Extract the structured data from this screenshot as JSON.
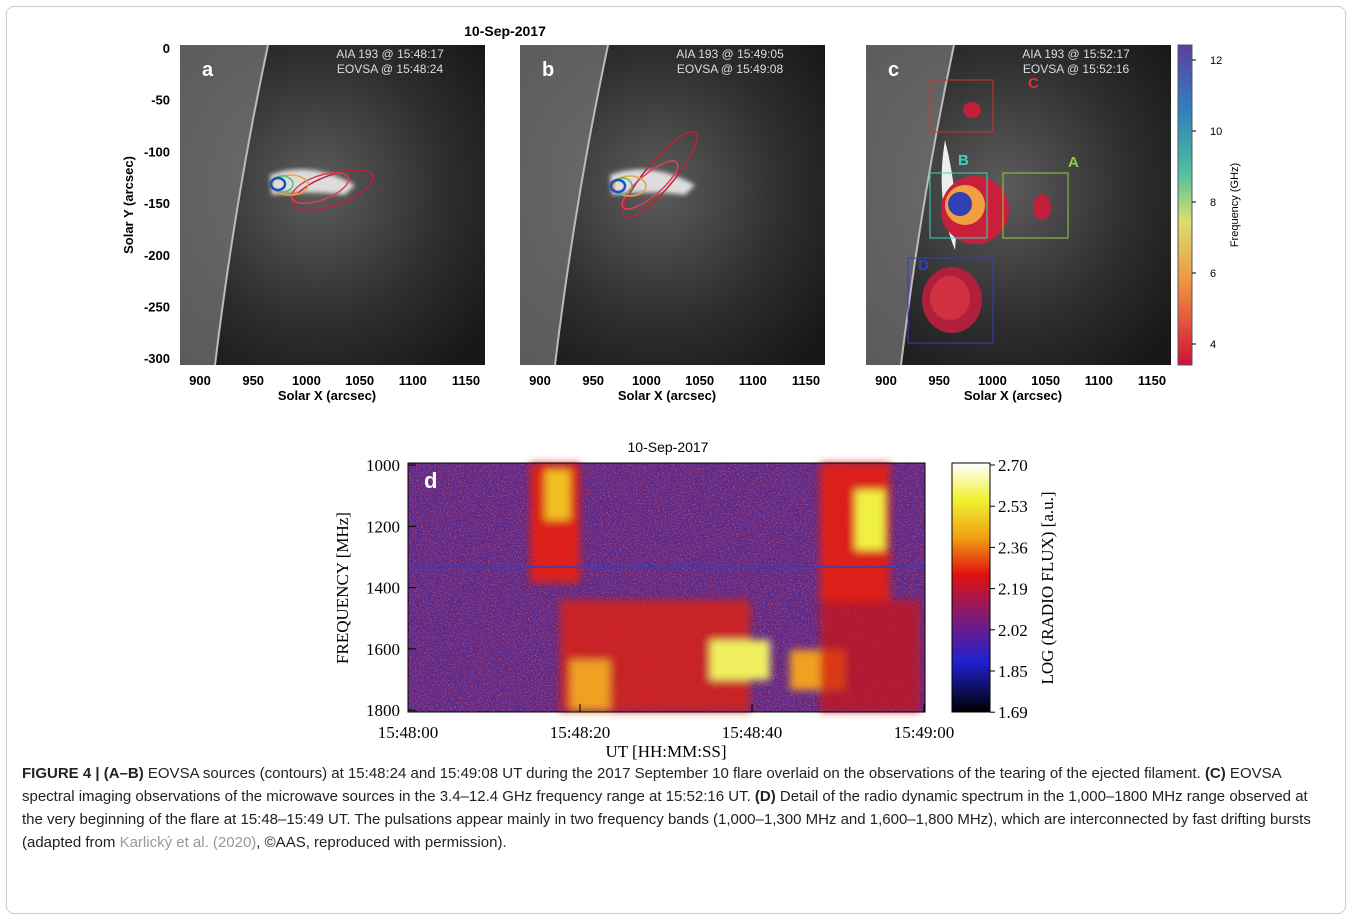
{
  "top": {
    "title": "10-Sep-2017",
    "yaxis_label": "Solar Y (arcsec)",
    "xaxis_label": "Solar X (arcsec)",
    "yticks": [
      "0",
      "-50",
      "-100",
      "-150",
      "-200",
      "-250",
      "-300"
    ],
    "xticks": [
      "900",
      "950",
      "1000",
      "1050",
      "1100",
      "1150"
    ],
    "panels": [
      {
        "label": "a",
        "annotations": [
          "AIA 193 @ 15:48:17",
          "EOVSA @ 15:48:24"
        ]
      },
      {
        "label": "b",
        "annotations": [
          "AIA 193 @ 15:49:05",
          "EOVSA @ 15:49:08"
        ]
      },
      {
        "label": "c",
        "annotations": [
          "AIA 193 @ 15:52:17",
          "EOVSA @ 15:52:16"
        ],
        "boxes": [
          "C",
          "B",
          "A",
          "D"
        ]
      }
    ],
    "colorbar": {
      "label": "Frequency (GHz)",
      "ticks": [
        "12",
        "10",
        "8",
        "6",
        "4"
      ]
    }
  },
  "bottom": {
    "title": "10-Sep-2017",
    "label": "d",
    "yaxis_label": "FREQUENCY [MHz]",
    "xaxis_label": "UT [HH:MM:SS]",
    "yticks": [
      "1000",
      "1200",
      "1400",
      "1600",
      "1800"
    ],
    "xticks": [
      "15:48:00",
      "15:48:20",
      "15:48:40",
      "15:49:00"
    ],
    "colorbar": {
      "label": "LOG (RADIO FLUX) [a.u.]",
      "ticks": [
        "2.70",
        "2.53",
        "2.36",
        "2.19",
        "2.02",
        "1.85",
        "1.69"
      ]
    }
  },
  "caption": [
    "FIGURE 4 | (A–B)",
    " EOVSA sources (contours) at 15:48:24 and 15:49:08 UT during the 2017 September 10 flare overlaid on the observations of the tearing of the ejected filament. ",
    "(C)",
    " EOVSA spectral imaging observations of the microwave sources in the 3.4–12.4 GHz frequency range at 15:52:16 UT. ",
    "(D)",
    " Detail of the radio dynamic spectrum in the 1,000–1800 MHz range observed at the very beginning of the flare at 15:48–15:49 UT. The pulsations appear mainly in two frequency bands (1,000–1,300 MHz and 1,600–1,800 MHz), which are interconnected by fast drifting bursts (adapted from ",
    "Karlický et al. (2020)",
    ", ©AAS, reproduced with permission)."
  ]
}
